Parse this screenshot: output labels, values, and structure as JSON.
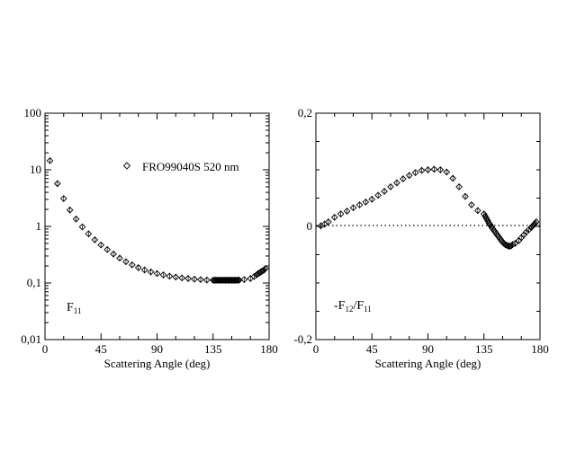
{
  "chart_data": [
    {
      "type": "scatter",
      "panel_label": {
        "main": "F",
        "sub": "11"
      },
      "xlabel": "Scattering Angle (deg)",
      "ylabel": "",
      "xlim": [
        0,
        180
      ],
      "ylim": [
        0.01,
        100
      ],
      "yscale": "log",
      "xticks": [
        0,
        45,
        90,
        135,
        180
      ],
      "xtick_labels": [
        "0",
        "45",
        "90",
        "135",
        "180"
      ],
      "yticks": [
        0.01,
        0.1,
        1,
        10,
        100
      ],
      "ytick_labels": [
        "0,01",
        "0,1",
        "1",
        "10",
        "100"
      ],
      "grid": false,
      "legend": {
        "position": "top-right",
        "entries": [
          "FRO99040S  520 nm"
        ]
      },
      "series": [
        {
          "name": "FRO99040S  520 nm",
          "marker": "open-diamond",
          "x": [
            4,
            10,
            15,
            20,
            25,
            30,
            35,
            40,
            45,
            50,
            55,
            60,
            65,
            70,
            75,
            80,
            85,
            90,
            95,
            100,
            105,
            110,
            115,
            120,
            125,
            130,
            135,
            136,
            137,
            138,
            139,
            140,
            141,
            142,
            143,
            144,
            145,
            146,
            147,
            148,
            149,
            150,
            151,
            152,
            153,
            154,
            155,
            156,
            160,
            165,
            168,
            170,
            171,
            172,
            173,
            174,
            175,
            176,
            177
          ],
          "y": [
            14.5,
            5.7,
            3.1,
            1.95,
            1.35,
            0.98,
            0.74,
            0.58,
            0.47,
            0.39,
            0.325,
            0.275,
            0.238,
            0.209,
            0.187,
            0.17,
            0.157,
            0.147,
            0.139,
            0.132,
            0.127,
            0.123,
            0.12,
            0.117,
            0.115,
            0.113,
            0.112,
            0.112,
            0.112,
            0.112,
            0.112,
            0.112,
            0.112,
            0.112,
            0.112,
            0.112,
            0.112,
            0.112,
            0.112,
            0.112,
            0.112,
            0.112,
            0.112,
            0.112,
            0.112,
            0.112,
            0.112,
            0.113,
            0.115,
            0.12,
            0.13,
            0.14,
            0.145,
            0.15,
            0.155,
            0.16,
            0.165,
            0.17,
            0.18
          ]
        }
      ]
    },
    {
      "type": "scatter",
      "panel_label": {
        "main": "-F",
        "sub1": "12",
        "mid": "/F",
        "sub2": "11"
      },
      "xlabel": "Scattering Angle (deg)",
      "ylabel": "",
      "xlim": [
        0,
        180
      ],
      "ylim": [
        -0.2,
        0.2
      ],
      "xticks": [
        0,
        45,
        90,
        135,
        180
      ],
      "xtick_labels": [
        "0",
        "45",
        "90",
        "135",
        "180"
      ],
      "yticks": [
        -0.2,
        0,
        0.2
      ],
      "ytick_labels": [
        "-0,2",
        "0",
        "0,2"
      ],
      "zero_line": "dotted",
      "grid": false,
      "series": [
        {
          "name": "",
          "marker": "open-diamond",
          "x": [
            4,
            7,
            10,
            15,
            20,
            25,
            30,
            35,
            40,
            45,
            50,
            55,
            60,
            65,
            70,
            75,
            80,
            85,
            90,
            95,
            100,
            105,
            110,
            115,
            120,
            125,
            130,
            135,
            136,
            137,
            138,
            139,
            140,
            141,
            142,
            143,
            144,
            145,
            146,
            147,
            148,
            149,
            150,
            151,
            152,
            153,
            154,
            155,
            156,
            157,
            158,
            160,
            163,
            165,
            167,
            169,
            171,
            173,
            174,
            175,
            176,
            177
          ],
          "y": [
            0.001,
            0.004,
            0.008,
            0.016,
            0.022,
            0.027,
            0.033,
            0.038,
            0.043,
            0.048,
            0.055,
            0.062,
            0.07,
            0.077,
            0.084,
            0.09,
            0.095,
            0.099,
            0.1,
            0.101,
            0.1,
            0.096,
            0.085,
            0.07,
            0.053,
            0.038,
            0.028,
            0.022,
            0.018,
            0.014,
            0.01,
            0.006,
            0.003,
            -0.001,
            -0.004,
            -0.007,
            -0.01,
            -0.013,
            -0.016,
            -0.019,
            -0.022,
            -0.025,
            -0.028,
            -0.03,
            -0.032,
            -0.033,
            -0.034,
            -0.035,
            -0.035,
            -0.034,
            -0.032,
            -0.03,
            -0.025,
            -0.02,
            -0.015,
            -0.01,
            -0.006,
            -0.002,
            0.001,
            0.003,
            0.005,
            0.008
          ]
        }
      ]
    }
  ]
}
